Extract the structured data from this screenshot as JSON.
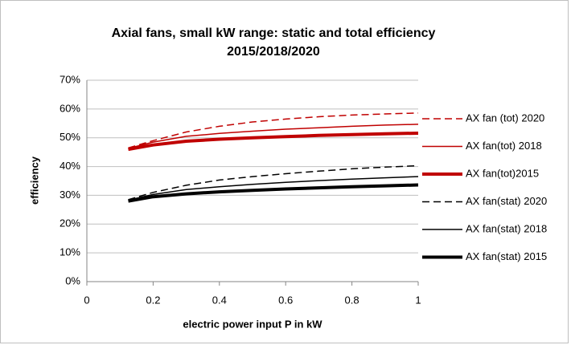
{
  "chart_data": {
    "type": "line",
    "title": [
      "Axial fans, small kW range: static and total efficiency",
      "2015/2018/2020"
    ],
    "x_label": "electric power input P in kW",
    "y_label": "efficiency",
    "x": [
      0.125,
      0.2,
      0.3,
      0.4,
      0.5,
      0.6,
      0.7,
      0.8,
      0.9,
      1.0
    ],
    "series": [
      {
        "name": "AX fan (tot) 2020",
        "color": "#c00000",
        "dash": true,
        "width": 1.5,
        "values": [
          46.5,
          49,
          52,
          54,
          55.5,
          56.5,
          57.3,
          57.9,
          58.3,
          58.6
        ]
      },
      {
        "name": "AX fan(tot) 2018",
        "color": "#c00000",
        "dash": false,
        "width": 1.5,
        "values": [
          46.3,
          48.5,
          50.5,
          51.5,
          52.3,
          53,
          53.5,
          54,
          54.4,
          54.7
        ]
      },
      {
        "name": "AX fan(tot)2015",
        "color": "#c00000",
        "dash": false,
        "width": 4,
        "values": [
          46,
          47.5,
          48.8,
          49.5,
          50,
          50.4,
          50.8,
          51.1,
          51.4,
          51.6
        ]
      },
      {
        "name": "AX fan(stat) 2020",
        "color": "#000000",
        "dash": true,
        "width": 1.5,
        "values": [
          28.5,
          31,
          33.5,
          35.3,
          36.5,
          37.5,
          38.4,
          39.2,
          39.8,
          40.3
        ]
      },
      {
        "name": "AX fan(stat) 2018",
        "color": "#000000",
        "dash": false,
        "width": 1.5,
        "values": [
          28.3,
          30.3,
          32,
          33,
          33.8,
          34.5,
          35.1,
          35.6,
          36.1,
          36.5
        ]
      },
      {
        "name": "AX fan(stat) 2015",
        "color": "#000000",
        "dash": false,
        "width": 4,
        "values": [
          28,
          29.5,
          30.5,
          31.2,
          31.7,
          32.2,
          32.6,
          33,
          33.3,
          33.6
        ]
      }
    ],
    "xlim": [
      0,
      1
    ],
    "xticks": [
      0,
      0.2,
      0.4,
      0.6,
      0.8,
      1
    ],
    "ylim": [
      0,
      70
    ],
    "yticks": [
      {
        "value": 0,
        "label": "0%"
      },
      {
        "value": 10,
        "label": "10%"
      },
      {
        "value": 20,
        "label": "20%"
      },
      {
        "value": 30,
        "label": "30%"
      },
      {
        "value": 40,
        "label": "40%"
      },
      {
        "value": 50,
        "label": "50%"
      },
      {
        "value": 60,
        "label": "60%"
      },
      {
        "value": 70,
        "label": "70%"
      }
    ],
    "grid": true,
    "legend": "right"
  }
}
